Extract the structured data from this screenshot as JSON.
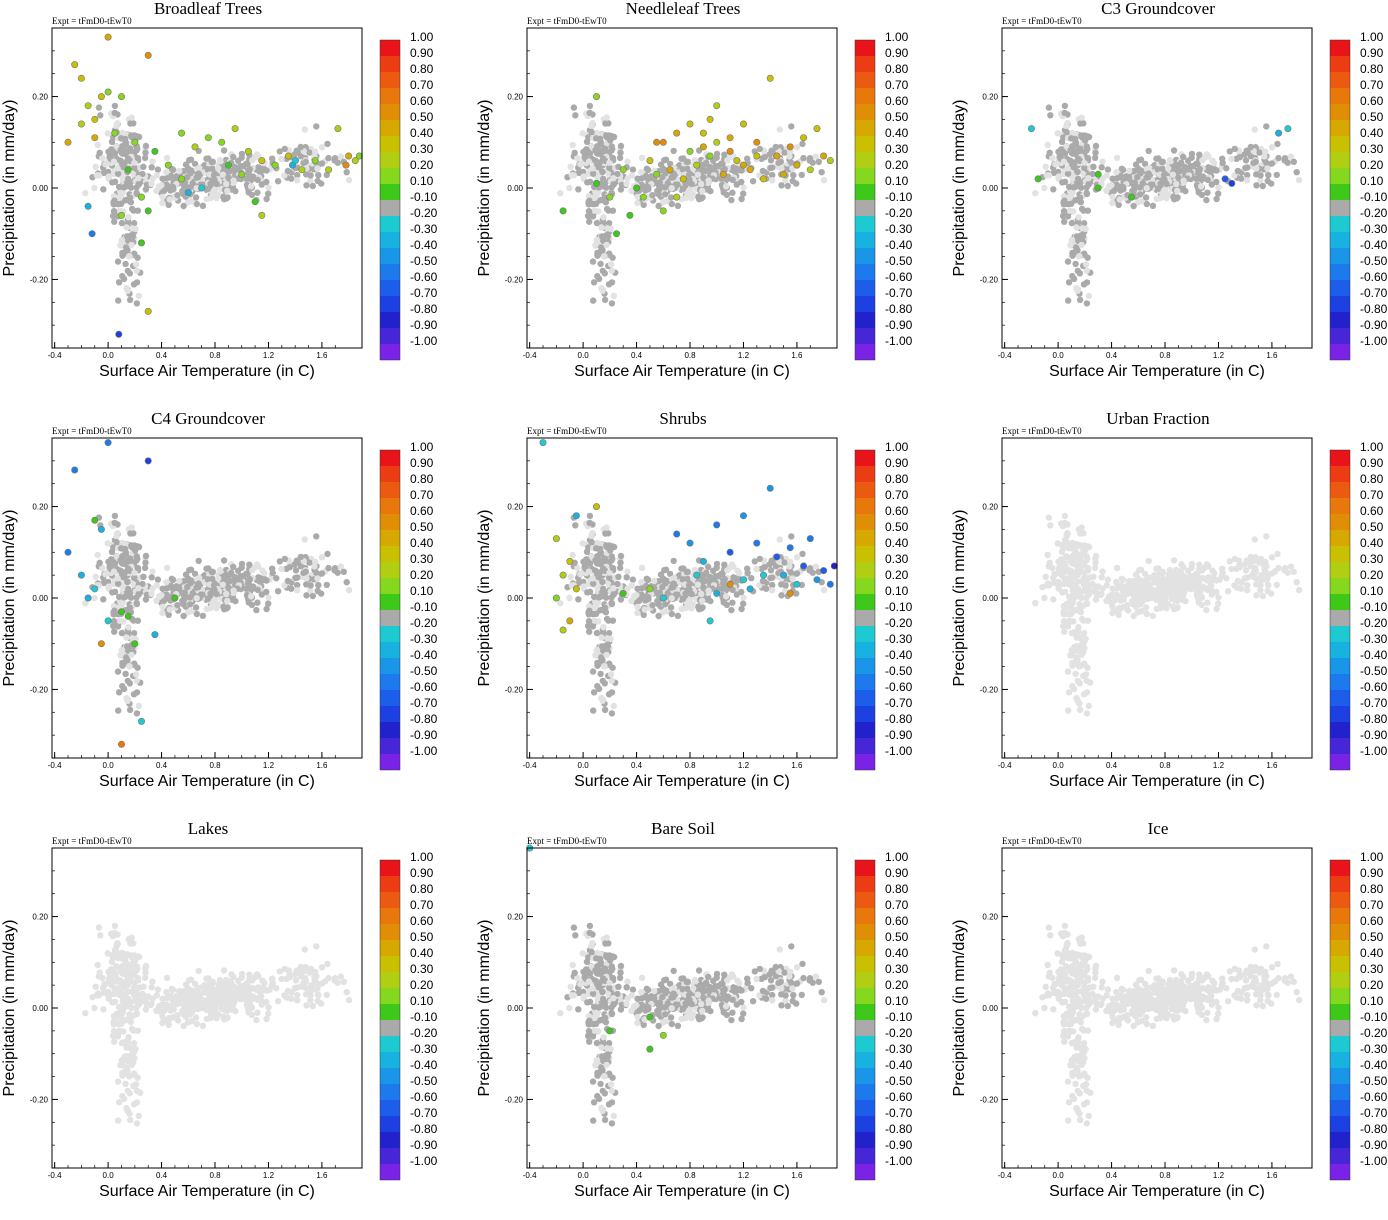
{
  "chart_data": {
    "type": "scatter",
    "layout": "3x3 grid of scatter panels",
    "shared": {
      "annotation": "Expt = tFmD0-tEwT0",
      "xlabel": "Surface Air Temperature (in C)",
      "ylabel": "Precipitation (in mm/day)",
      "xlim": [
        -0.42,
        1.9
      ],
      "ylim": [
        -0.35,
        0.35
      ],
      "xticks": [
        "-0.4",
        "0.0",
        "0.4",
        "0.8",
        "1.2",
        "1.6"
      ],
      "xtick_values": [
        -0.4,
        0.0,
        0.4,
        0.8,
        1.2,
        1.6
      ],
      "yticks": [
        "0.20",
        "0.00",
        "-0.20"
      ],
      "ytick_values": [
        0.2,
        0.0,
        -0.2
      ],
      "colorbar_labels": [
        "1.00",
        "0.90",
        "0.80",
        "0.70",
        "0.60",
        "0.50",
        "0.40",
        "0.30",
        "0.20",
        "0.10",
        "-0.10",
        "-0.20",
        "-0.30",
        "-0.40",
        "-0.50",
        "-0.60",
        "-0.70",
        "-0.80",
        "-0.90",
        "-1.00"
      ],
      "colorbar_colors": [
        "#e8141a",
        "#ec3c14",
        "#ec5a12",
        "#e8780c",
        "#e08e06",
        "#d6a800",
        "#c8c000",
        "#b2ce12",
        "#86d81e",
        "#3ec81a",
        "#aaaaaa",
        "#1ecad2",
        "#18b2e0",
        "#1a96e8",
        "#1c7aec",
        "#1c5eea",
        "#1c40e2",
        "#2222cc",
        "#4626d6",
        "#7a22e6"
      ],
      "background_point_color": "#e2e2e2",
      "neutral_point_color": "#aaaaaa"
    },
    "panels": [
      {
        "title": "Broadleaf Trees",
        "highlights": [
          {
            "x": 0.0,
            "y": 0.33,
            "v": 0.5
          },
          {
            "x": -0.25,
            "y": 0.27,
            "v": 0.4
          },
          {
            "x": -0.2,
            "y": 0.24,
            "v": 0.4
          },
          {
            "x": 0.3,
            "y": 0.29,
            "v": 0.6
          },
          {
            "x": -0.05,
            "y": 0.2,
            "v": 0.4
          },
          {
            "x": 0.0,
            "y": 0.21,
            "v": 0.2
          },
          {
            "x": -0.15,
            "y": 0.18,
            "v": 0.3
          },
          {
            "x": 0.1,
            "y": 0.2,
            "v": 0.2
          },
          {
            "x": -0.1,
            "y": 0.15,
            "v": 0.4
          },
          {
            "x": -0.2,
            "y": 0.14,
            "v": 0.3
          },
          {
            "x": -0.3,
            "y": 0.1,
            "v": 0.5
          },
          {
            "x": -0.1,
            "y": 0.11,
            "v": 0.5
          },
          {
            "x": 0.05,
            "y": 0.12,
            "v": 0.2
          },
          {
            "x": 0.2,
            "y": 0.1,
            "v": 0.2
          },
          {
            "x": 0.35,
            "y": 0.08,
            "v": 0.1
          },
          {
            "x": 0.45,
            "y": 0.05,
            "v": 0.2
          },
          {
            "x": 0.55,
            "y": 0.12,
            "v": 0.2
          },
          {
            "x": 0.65,
            "y": 0.09,
            "v": 0.3
          },
          {
            "x": 0.75,
            "y": 0.11,
            "v": 0.2
          },
          {
            "x": 0.85,
            "y": 0.1,
            "v": 0.2
          },
          {
            "x": 0.95,
            "y": 0.13,
            "v": 0.3
          },
          {
            "x": 1.05,
            "y": 0.08,
            "v": 0.3
          },
          {
            "x": 1.15,
            "y": 0.06,
            "v": 0.4
          },
          {
            "x": 1.25,
            "y": 0.05,
            "v": 0.2
          },
          {
            "x": 1.35,
            "y": 0.07,
            "v": 0.4
          },
          {
            "x": 1.45,
            "y": 0.04,
            "v": 0.3
          },
          {
            "x": 1.55,
            "y": 0.06,
            "v": 0.2
          },
          {
            "x": 1.65,
            "y": 0.04,
            "v": 0.3
          },
          {
            "x": 1.72,
            "y": 0.13,
            "v": 0.3
          },
          {
            "x": 1.8,
            "y": 0.07,
            "v": 0.5
          },
          {
            "x": 1.85,
            "y": 0.06,
            "v": 0.3
          },
          {
            "x": 1.88,
            "y": 0.07,
            "v": 0.2
          },
          {
            "x": 1.78,
            "y": 0.05,
            "v": 0.6
          },
          {
            "x": 1.4,
            "y": 0.06,
            "v": -0.2
          },
          {
            "x": 1.38,
            "y": 0.05,
            "v": -0.3
          },
          {
            "x": 0.7,
            "y": 0.0,
            "v": -0.2
          },
          {
            "x": 0.9,
            "y": 0.05,
            "v": 0.1
          },
          {
            "x": 0.15,
            "y": 0.04,
            "v": 0.1
          },
          {
            "x": 0.25,
            "y": -0.02,
            "v": 0.2
          },
          {
            "x": 0.3,
            "y": -0.05,
            "v": 0.1
          },
          {
            "x": 0.1,
            "y": -0.06,
            "v": 0.2
          },
          {
            "x": -0.15,
            "y": -0.04,
            "v": -0.3
          },
          {
            "x": -0.12,
            "y": -0.1,
            "v": -0.5
          },
          {
            "x": 0.08,
            "y": -0.32,
            "v": -0.7
          },
          {
            "x": 0.25,
            "y": -0.12,
            "v": 0.1
          },
          {
            "x": 0.3,
            "y": -0.27,
            "v": 0.4
          },
          {
            "x": 1.0,
            "y": 0.03,
            "v": 0.2
          },
          {
            "x": 1.1,
            "y": -0.03,
            "v": 0.1
          },
          {
            "x": 1.15,
            "y": -0.06,
            "v": 0.3
          },
          {
            "x": 0.55,
            "y": 0.02,
            "v": 0.2
          },
          {
            "x": 0.6,
            "y": -0.01,
            "v": -0.3
          }
        ]
      },
      {
        "title": "Needleleaf Trees",
        "highlights": [
          {
            "x": 0.1,
            "y": 0.2,
            "v": 0.2
          },
          {
            "x": 0.6,
            "y": 0.1,
            "v": 0.6
          },
          {
            "x": 0.7,
            "y": 0.12,
            "v": 0.5
          },
          {
            "x": 0.8,
            "y": 0.14,
            "v": 0.4
          },
          {
            "x": 0.9,
            "y": 0.09,
            "v": 0.5
          },
          {
            "x": 1.0,
            "y": 0.18,
            "v": 0.3
          },
          {
            "x": 1.1,
            "y": 0.11,
            "v": 0.5
          },
          {
            "x": 1.2,
            "y": 0.14,
            "v": 0.4
          },
          {
            "x": 1.3,
            "y": 0.1,
            "v": 0.6
          },
          {
            "x": 1.4,
            "y": 0.24,
            "v": 0.4
          },
          {
            "x": 1.45,
            "y": 0.07,
            "v": 0.5
          },
          {
            "x": 1.55,
            "y": 0.09,
            "v": 0.6
          },
          {
            "x": 1.6,
            "y": 0.05,
            "v": 0.5
          },
          {
            "x": 1.65,
            "y": 0.11,
            "v": 0.4
          },
          {
            "x": 1.7,
            "y": 0.04,
            "v": 0.3
          },
          {
            "x": 1.75,
            "y": 0.13,
            "v": 0.4
          },
          {
            "x": 1.8,
            "y": 0.07,
            "v": 0.5
          },
          {
            "x": 1.85,
            "y": 0.06,
            "v": 0.3
          },
          {
            "x": 0.5,
            "y": 0.06,
            "v": 0.4
          },
          {
            "x": 0.55,
            "y": 0.03,
            "v": 0.2
          },
          {
            "x": 0.65,
            "y": 0.04,
            "v": 0.5
          },
          {
            "x": 0.75,
            "y": 0.02,
            "v": 0.4
          },
          {
            "x": 0.85,
            "y": 0.05,
            "v": 0.3
          },
          {
            "x": 0.95,
            "y": 0.07,
            "v": 0.2
          },
          {
            "x": 1.05,
            "y": 0.03,
            "v": 0.5
          },
          {
            "x": 1.15,
            "y": 0.06,
            "v": 0.4
          },
          {
            "x": 1.25,
            "y": 0.04,
            "v": 0.5
          },
          {
            "x": 1.35,
            "y": 0.02,
            "v": 0.4
          },
          {
            "x": 1.5,
            "y": 0.03,
            "v": 0.5
          },
          {
            "x": 0.3,
            "y": 0.04,
            "v": 0.2
          },
          {
            "x": 0.4,
            "y": 0.0,
            "v": 0.1
          },
          {
            "x": 0.45,
            "y": -0.02,
            "v": 0.2
          },
          {
            "x": 0.35,
            "y": -0.06,
            "v": 0.1
          },
          {
            "x": 0.2,
            "y": -0.02,
            "v": 0.2
          },
          {
            "x": 0.1,
            "y": 0.01,
            "v": 0.1
          },
          {
            "x": -0.15,
            "y": -0.05,
            "v": 0.1
          },
          {
            "x": 0.6,
            "y": -0.05,
            "v": 0.2
          },
          {
            "x": 0.7,
            "y": -0.02,
            "v": 0.3
          },
          {
            "x": 0.8,
            "y": 0.08,
            "v": 0.2
          },
          {
            "x": 0.9,
            "y": 0.12,
            "v": 0.4
          },
          {
            "x": 1.0,
            "y": 0.1,
            "v": 0.3
          },
          {
            "x": 1.1,
            "y": 0.08,
            "v": 0.6
          },
          {
            "x": 1.2,
            "y": 0.05,
            "v": 0.5
          },
          {
            "x": 1.3,
            "y": 0.07,
            "v": 0.4
          },
          {
            "x": 0.25,
            "y": -0.1,
            "v": 0.1
          },
          {
            "x": 0.55,
            "y": 0.1,
            "v": 0.6
          },
          {
            "x": 0.95,
            "y": 0.15,
            "v": 0.4
          }
        ]
      },
      {
        "title": "C3 Groundcover",
        "highlights": [
          {
            "x": -0.2,
            "y": 0.13,
            "v": -0.2
          },
          {
            "x": -0.15,
            "y": 0.02,
            "v": 0.1
          },
          {
            "x": 0.3,
            "y": 0.03,
            "v": 0.1
          },
          {
            "x": 0.55,
            "y": -0.02,
            "v": 0.1
          },
          {
            "x": 0.3,
            "y": -0.0,
            "v": 0.1
          },
          {
            "x": 1.72,
            "y": 0.13,
            "v": -0.2
          },
          {
            "x": 1.65,
            "y": 0.12,
            "v": -0.3
          },
          {
            "x": 1.3,
            "y": 0.01,
            "v": -0.7
          },
          {
            "x": 1.25,
            "y": 0.02,
            "v": -0.6
          }
        ]
      },
      {
        "title": "C4 Groundcover",
        "highlights": [
          {
            "x": 0.0,
            "y": 0.34,
            "v": -0.5
          },
          {
            "x": -0.25,
            "y": 0.28,
            "v": -0.5
          },
          {
            "x": 0.3,
            "y": 0.3,
            "v": -0.7
          },
          {
            "x": -0.1,
            "y": 0.17,
            "v": 0.1
          },
          {
            "x": -0.05,
            "y": 0.15,
            "v": -0.3
          },
          {
            "x": -0.3,
            "y": 0.1,
            "v": -0.5
          },
          {
            "x": -0.2,
            "y": 0.05,
            "v": -0.3
          },
          {
            "x": -0.1,
            "y": 0.02,
            "v": -0.2
          },
          {
            "x": -0.15,
            "y": 0.0,
            "v": -0.3
          },
          {
            "x": 0.1,
            "y": -0.03,
            "v": 0.1
          },
          {
            "x": 0.15,
            "y": -0.04,
            "v": 0.1
          },
          {
            "x": 0.5,
            "y": 0.0,
            "v": 0.1
          },
          {
            "x": -0.05,
            "y": -0.1,
            "v": 0.6
          },
          {
            "x": 0.2,
            "y": -0.1,
            "v": 0.1
          },
          {
            "x": 0.1,
            "y": -0.32,
            "v": 0.7
          },
          {
            "x": 0.25,
            "y": -0.27,
            "v": -0.2
          },
          {
            "x": 0.35,
            "y": -0.08,
            "v": -0.3
          },
          {
            "x": 0.0,
            "y": -0.05,
            "v": -0.2
          }
        ]
      },
      {
        "title": "Shrubs",
        "highlights": [
          {
            "x": -0.3,
            "y": 0.34,
            "v": -0.2
          },
          {
            "x": 0.1,
            "y": 0.2,
            "v": 0.4
          },
          {
            "x": -0.05,
            "y": 0.18,
            "v": -0.3
          },
          {
            "x": -0.2,
            "y": 0.13,
            "v": 0.3
          },
          {
            "x": -0.1,
            "y": 0.08,
            "v": 0.4
          },
          {
            "x": -0.15,
            "y": 0.05,
            "v": 0.3
          },
          {
            "x": -0.05,
            "y": 0.02,
            "v": 0.4
          },
          {
            "x": -0.2,
            "y": 0.0,
            "v": 0.2
          },
          {
            "x": -0.1,
            "y": -0.05,
            "v": 0.5
          },
          {
            "x": -0.15,
            "y": -0.07,
            "v": 0.3
          },
          {
            "x": 0.3,
            "y": 0.01,
            "v": 0.1
          },
          {
            "x": 0.5,
            "y": 0.02,
            "v": 0.2
          },
          {
            "x": 0.7,
            "y": 0.14,
            "v": -0.5
          },
          {
            "x": 0.8,
            "y": 0.12,
            "v": -0.4
          },
          {
            "x": 0.9,
            "y": 0.08,
            "v": -0.3
          },
          {
            "x": 1.0,
            "y": 0.16,
            "v": -0.5
          },
          {
            "x": 1.1,
            "y": 0.1,
            "v": -0.6
          },
          {
            "x": 1.2,
            "y": 0.18,
            "v": -0.4
          },
          {
            "x": 1.3,
            "y": 0.12,
            "v": -0.5
          },
          {
            "x": 1.4,
            "y": 0.24,
            "v": -0.4
          },
          {
            "x": 1.45,
            "y": 0.09,
            "v": -0.6
          },
          {
            "x": 1.5,
            "y": 0.05,
            "v": -0.3
          },
          {
            "x": 1.55,
            "y": 0.11,
            "v": -0.5
          },
          {
            "x": 1.6,
            "y": 0.03,
            "v": -0.2
          },
          {
            "x": 1.65,
            "y": 0.07,
            "v": -0.6
          },
          {
            "x": 1.7,
            "y": 0.13,
            "v": -0.5
          },
          {
            "x": 1.75,
            "y": 0.04,
            "v": -0.4
          },
          {
            "x": 1.8,
            "y": 0.06,
            "v": -0.6
          },
          {
            "x": 1.85,
            "y": 0.03,
            "v": -0.5
          },
          {
            "x": 1.88,
            "y": 0.07,
            "v": -0.8
          },
          {
            "x": 1.2,
            "y": 0.04,
            "v": -0.2
          },
          {
            "x": 1.25,
            "y": 0.02,
            "v": -0.3
          },
          {
            "x": 1.35,
            "y": 0.05,
            "v": -0.2
          },
          {
            "x": 1.1,
            "y": 0.03,
            "v": 0.6
          },
          {
            "x": 1.0,
            "y": 0.01,
            "v": -0.3
          },
          {
            "x": 0.95,
            "y": -0.05,
            "v": -0.2
          },
          {
            "x": 0.6,
            "y": 0.0,
            "v": -0.2
          },
          {
            "x": 1.55,
            "y": 0.01,
            "v": 0.6
          },
          {
            "x": 0.85,
            "y": 0.05,
            "v": -0.2
          }
        ]
      },
      {
        "title": "Urban Fraction",
        "highlights": []
      },
      {
        "title": "Lakes",
        "highlights": []
      },
      {
        "title": "Bare Soil",
        "highlights": [
          {
            "x": -0.4,
            "y": 0.35,
            "v": -0.2
          },
          {
            "x": 0.5,
            "y": -0.02,
            "v": 0.1
          },
          {
            "x": 0.2,
            "y": -0.05,
            "v": 0.1
          },
          {
            "x": 0.6,
            "y": -0.06,
            "v": 0.2
          },
          {
            "x": 0.5,
            "y": -0.09,
            "v": 0.1
          }
        ]
      },
      {
        "title": "Ice",
        "highlights": []
      }
    ]
  }
}
